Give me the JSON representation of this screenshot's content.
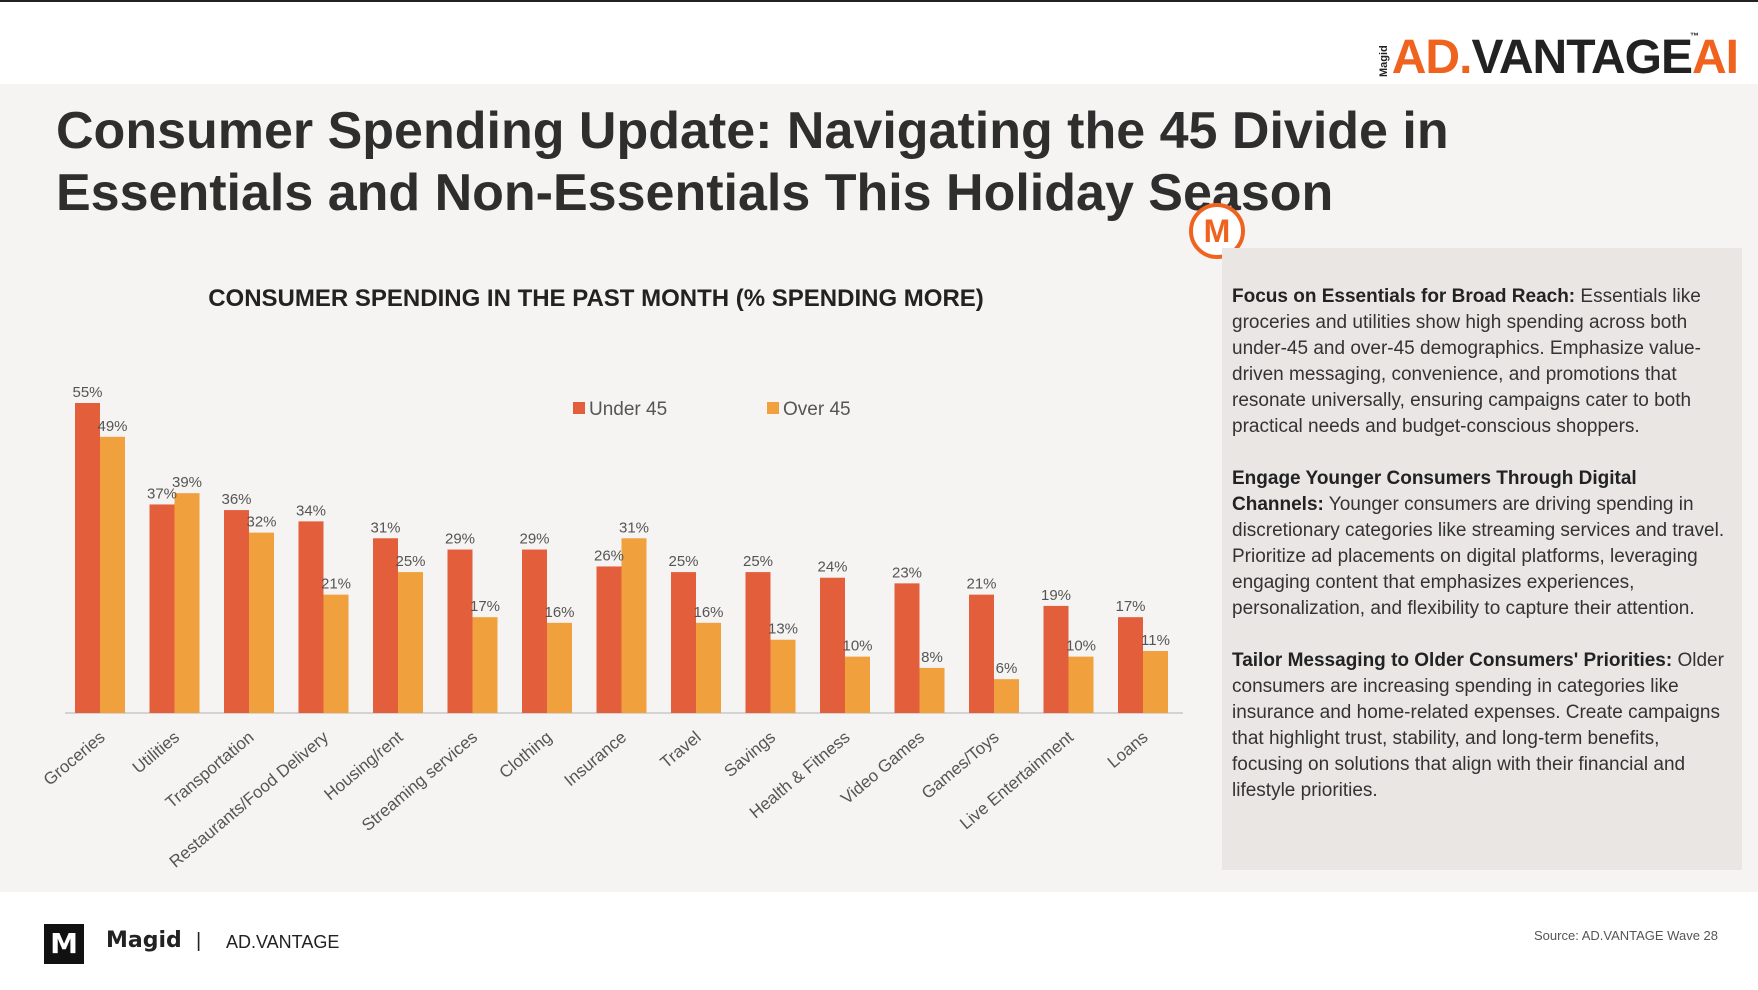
{
  "brand": {
    "logo_small": "Magid",
    "logo_ad": "AD.",
    "logo_vantage": "VANTAGE",
    "logo_ai": "AI",
    "logo_tm": "™",
    "badge_letter": "M"
  },
  "title": "Consumer Spending Update: Navigating the 45 Divide in Essentials and Non-Essentials This Holiday Season",
  "colors": {
    "under45": "#e35f3b",
    "over45": "#f0a03c",
    "accent": "#f0631f"
  },
  "chart_data": {
    "type": "bar",
    "title": "CONSUMER SPENDING IN THE PAST MONTH (% SPENDING MORE)",
    "categories": [
      "Groceries",
      "Utilities",
      "Transportation",
      "Restaurants/Food Delivery",
      "Housing/rent",
      "Streaming services",
      "Clothing",
      "Insurance",
      "Travel",
      "Savings",
      "Health & Fitness",
      "Video Games",
      "Games/Toys",
      "Live Entertainment",
      "Loans"
    ],
    "series": [
      {
        "name": "Under 45",
        "values": [
          55,
          37,
          36,
          34,
          31,
          29,
          29,
          26,
          25,
          25,
          24,
          23,
          21,
          19,
          17
        ]
      },
      {
        "name": "Over 45",
        "values": [
          49,
          39,
          32,
          21,
          25,
          17,
          16,
          31,
          16,
          13,
          10,
          8,
          6,
          10,
          11
        ]
      }
    ],
    "ylim": [
      0,
      55
    ],
    "grid": false,
    "legend": "top-center",
    "data_label_suffix": "%"
  },
  "insights": [
    {
      "heading": "Focus on Essentials for Broad Reach:",
      "body": " Essentials like groceries and utilities show high spending across both under-45 and over-45 demographics. Emphasize value-driven messaging, convenience, and promotions that resonate universally, ensuring campaigns cater to both practical needs and budget-conscious shoppers."
    },
    {
      "heading": "Engage Younger Consumers Through Digital Channels:",
      "body": " Younger consumers are driving spending in discretionary categories like streaming services and travel. Prioritize ad placements on digital platforms, leveraging engaging content that emphasizes experiences, personalization, and flexibility to capture their attention."
    },
    {
      "heading": "Tailor Messaging to Older Consumers' Priorities:",
      "body": " Older consumers are increasing spending in categories like insurance and home-related expenses. Create campaigns that highlight trust, stability, and long-term benefits, focusing on solutions that align with their financial and lifestyle priorities."
    }
  ],
  "footer": {
    "brand": "Magid",
    "separator": "|",
    "product": "AD.VANTAGE",
    "source": "Source: AD.VANTAGE Wave 28",
    "logo_letter": "M"
  }
}
